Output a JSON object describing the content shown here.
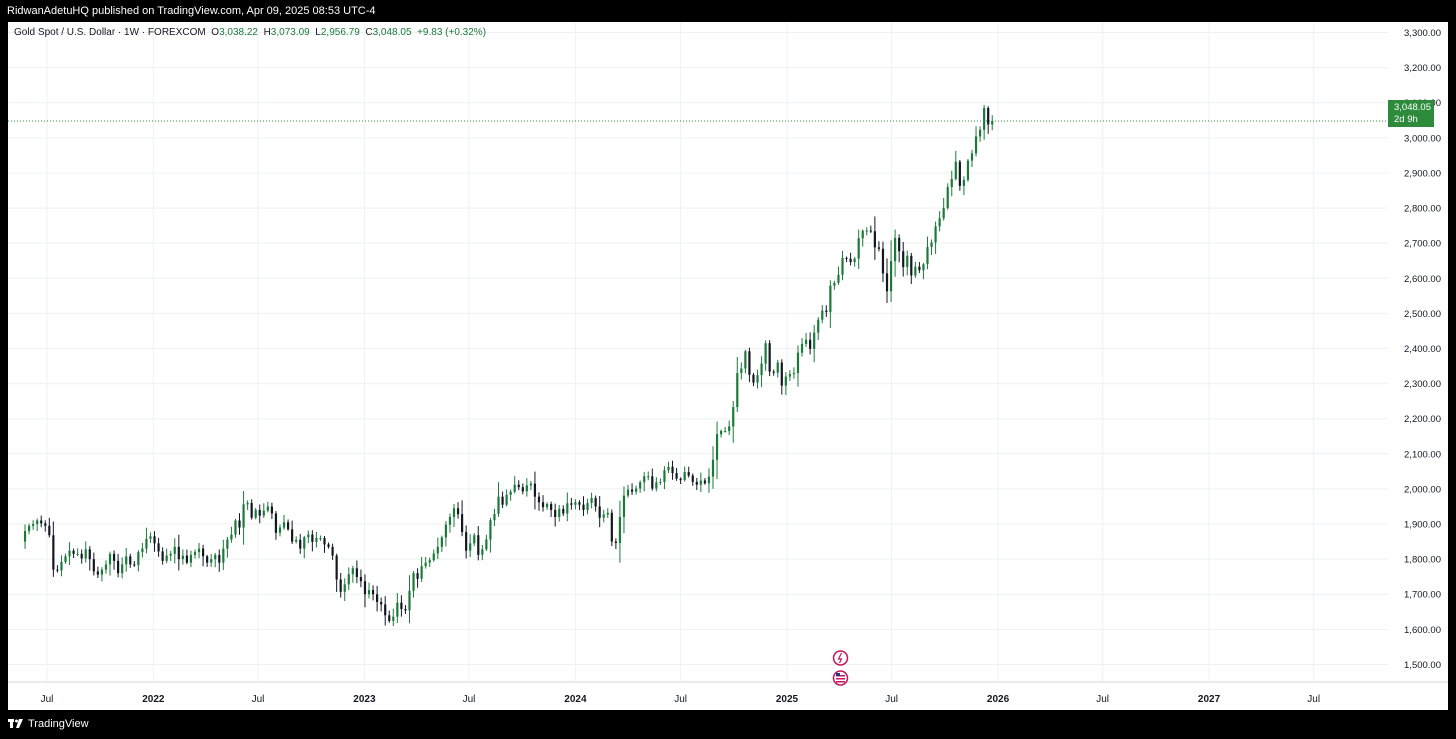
{
  "header": {
    "attribution": "RidwanAdetuHQ published on TradingView.com, Apr 09, 2025 08:53 UTC-4"
  },
  "legend": {
    "symbol": "Gold Spot / U.S. Dollar · 1W · FOREXCOM",
    "open_label": "O",
    "open": "3,038.22",
    "high_label": "H",
    "high": "3,073.09",
    "low_label": "L",
    "low": "2,956.79",
    "close_label": "C",
    "close": "3,048.05",
    "change": "+9.83 (+0.32%)"
  },
  "price_label": {
    "price": "3,048.05",
    "countdown": "2d 9h"
  },
  "footer": {
    "brand": "TradingView"
  },
  "colors": {
    "up": "#1b7a3a",
    "down": "#131722",
    "price_line": "#2e8b3c",
    "grid": "#eef0f3"
  },
  "chart_data": {
    "type": "candlestick",
    "timeframe": "1W",
    "y_axis": {
      "min": 1450,
      "max": 3330,
      "ticks": [
        "1,500.00",
        "1,600.00",
        "1,700.00",
        "1,800.00",
        "1,900.00",
        "2,000.00",
        "2,100.00",
        "2,200.00",
        "2,300.00",
        "2,400.00",
        "2,500.00",
        "2,600.00",
        "2,700.00",
        "2,800.00",
        "2,900.00",
        "3,000.00",
        "3,100.00",
        "3,200.00",
        "3,300.00"
      ],
      "tick_values": [
        1500,
        1600,
        1700,
        1800,
        1900,
        2000,
        2100,
        2200,
        2300,
        2400,
        2500,
        2600,
        2700,
        2800,
        2900,
        3000,
        3100,
        3200,
        3300
      ]
    },
    "x_axis": {
      "labels": [
        "Jul",
        "2022",
        "Jul",
        "2023",
        "Jul",
        "2024",
        "Jul",
        "2025",
        "Jul",
        "2026",
        "Jul",
        "2027",
        "Jul"
      ],
      "label_dates": [
        "2021-07-01",
        "2022-01-01",
        "2022-07-01",
        "2023-01-01",
        "2023-07-01",
        "2024-01-01",
        "2024-07-01",
        "2025-01-01",
        "2025-07-01",
        "2026-01-01",
        "2026-07-01",
        "2027-01-01",
        "2027-07-01"
      ]
    },
    "grid": true,
    "current_price": 3048.05,
    "candle_dates": {
      "first": "2021-05-24",
      "last": "2025-04-07",
      "interval": "week"
    },
    "closes": [
      1880,
      1895,
      1900,
      1910,
      1902,
      1895,
      1868,
      1770,
      1768,
      1792,
      1808,
      1824,
      1815,
      1815,
      1802,
      1828,
      1800,
      1765,
      1756,
      1770,
      1785,
      1815,
      1795,
      1760,
      1785,
      1808,
      1785,
      1783,
      1820,
      1830,
      1858,
      1865,
      1845,
      1822,
      1795,
      1810,
      1815,
      1835,
      1800,
      1810,
      1790,
      1812,
      1820,
      1830,
      1808,
      1790,
      1800,
      1812,
      1790,
      1830,
      1856,
      1870,
      1910,
      1890,
      1956,
      1960,
      1918,
      1940,
      1924,
      1938,
      1950,
      1930,
      1875,
      1890,
      1905,
      1885,
      1850,
      1855,
      1830,
      1862,
      1870,
      1849,
      1860,
      1860,
      1842,
      1835,
      1810,
      1742,
      1707,
      1728,
      1757,
      1774,
      1749,
      1737,
      1700,
      1712,
      1700,
      1678,
      1671,
      1640,
      1624,
      1636,
      1676,
      1658,
      1654,
      1710,
      1760,
      1744,
      1780,
      1790,
      1797,
      1816,
      1835,
      1862,
      1898,
      1920,
      1945,
      1928,
      1877,
      1824,
      1845,
      1868,
      1812,
      1828,
      1856,
      1911,
      1929,
      1978,
      1955,
      1983,
      1992,
      2012,
      2005,
      1993,
      2010,
      2015,
      1978,
      1962,
      1948,
      1957,
      1940,
      1920,
      1943,
      1930,
      1959,
      1955,
      1962,
      1955,
      1940,
      1960,
      1974,
      1950,
      1918,
      1927,
      1932,
      1850,
      1846,
      1920,
      1981,
      1998,
      1992,
      2001,
      2019,
      2036,
      2036,
      2001,
      2019,
      2020,
      2053,
      2063,
      2045,
      2029,
      2025,
      2048,
      2038,
      2020,
      2012,
      2024,
      2016,
      2035,
      2083,
      2156,
      2165,
      2165,
      2178,
      2233,
      2330,
      2343,
      2392,
      2325,
      2303,
      2324,
      2357,
      2415,
      2334,
      2331,
      2360,
      2294,
      2320,
      2327,
      2330,
      2388,
      2413,
      2425,
      2399,
      2445,
      2482,
      2508,
      2504,
      2579,
      2587,
      2610,
      2658,
      2656,
      2646,
      2656,
      2714,
      2735,
      2736,
      2734,
      2688,
      2684,
      2614,
      2563,
      2649,
      2715,
      2677,
      2632,
      2664,
      2608,
      2633,
      2623,
      2640,
      2689,
      2702,
      2748,
      2771,
      2800,
      2860,
      2883,
      2932,
      2863,
      2880,
      2935,
      2956,
      3004,
      3023,
      3085,
      3038,
      3048
    ]
  }
}
